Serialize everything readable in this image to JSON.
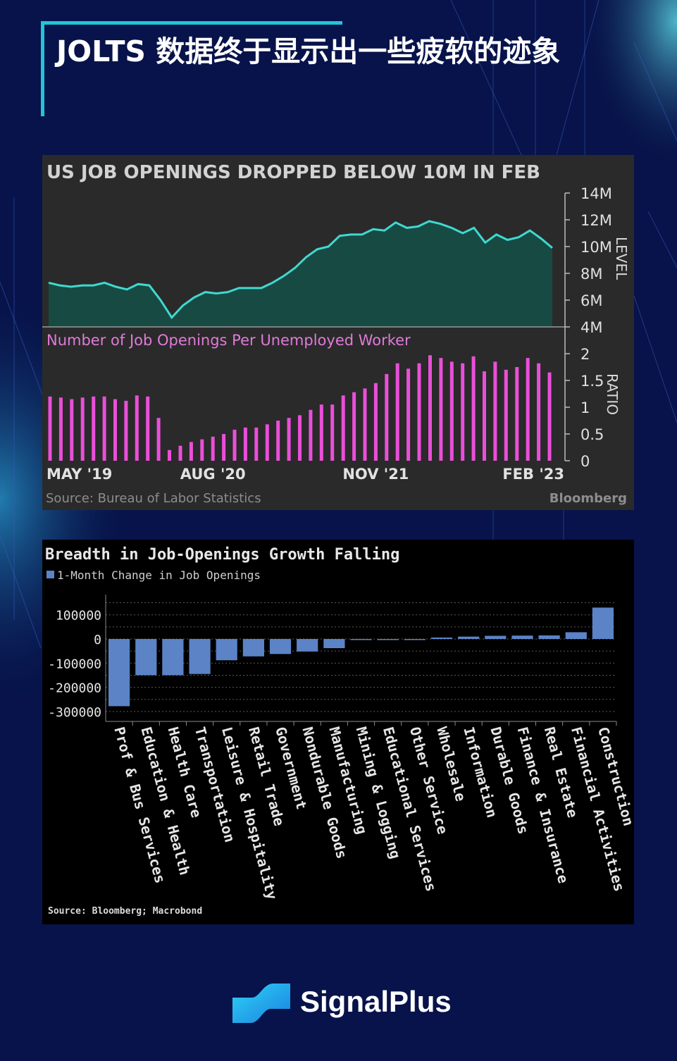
{
  "header": {
    "title": "JOLTS 数据终于显示出一些疲软的迹象"
  },
  "colors": {
    "background": "#07134a",
    "accent": "#22c4d6",
    "level_line": "#3fd9cf",
    "level_fill": "#184a44",
    "ratio_bars": "#ea4fd9",
    "sector_bars": "#5b83c6",
    "panel1_bg": "#2a2a2a",
    "panel2_bg": "#000000"
  },
  "chart_data": [
    {
      "type": "area",
      "title": "US JOB OPENINGS DROPPED BELOW 10M IN FEB",
      "ylabel": "LEVEL",
      "ylim": [
        4,
        14
      ],
      "y_ticks": [
        "14M",
        "12M",
        "10M",
        "8M",
        "6M",
        "4M"
      ],
      "y_tick_values": [
        14,
        12,
        10,
        8,
        6,
        4
      ],
      "x_ticks": [
        "MAY '19",
        "AUG '20",
        "NOV '21",
        "FEB '23"
      ],
      "x_tick_indices": [
        0,
        15,
        30,
        45
      ],
      "series": [
        {
          "values": [
            7.3,
            7.1,
            7.0,
            7.1,
            7.1,
            7.3,
            7.0,
            6.8,
            7.2,
            7.1,
            6.0,
            4.7,
            5.6,
            6.2,
            6.6,
            6.5,
            6.6,
            6.9,
            6.9,
            6.9,
            7.3,
            7.8,
            8.4,
            9.2,
            9.8,
            10.0,
            10.8,
            10.9,
            10.9,
            11.3,
            11.2,
            11.8,
            11.4,
            11.5,
            11.9,
            11.7,
            11.4,
            11.0,
            11.4,
            10.3,
            10.9,
            10.5,
            10.7,
            11.2,
            10.6,
            9.9
          ]
        }
      ]
    },
    {
      "type": "bar",
      "title": "Number of Job Openings Per Unemployed Worker",
      "ylabel": "RATIO",
      "ylim": [
        0,
        2
      ],
      "y_ticks": [
        "2",
        "1.5",
        "1",
        "0.5",
        "0"
      ],
      "y_tick_values": [
        2,
        1.5,
        1,
        0.5,
        0
      ],
      "series": [
        {
          "values": [
            1.2,
            1.18,
            1.15,
            1.18,
            1.2,
            1.2,
            1.15,
            1.12,
            1.22,
            1.2,
            0.8,
            0.2,
            0.28,
            0.35,
            0.4,
            0.45,
            0.5,
            0.58,
            0.62,
            0.62,
            0.68,
            0.75,
            0.8,
            0.85,
            0.95,
            1.05,
            1.05,
            1.22,
            1.28,
            1.35,
            1.45,
            1.62,
            1.82,
            1.72,
            1.82,
            1.97,
            1.92,
            1.85,
            1.82,
            1.95,
            1.67,
            1.85,
            1.7,
            1.75,
            1.92,
            1.82,
            1.65
          ]
        }
      ],
      "source": "Source: Bureau of Labor Statistics",
      "brand": "Bloomberg"
    },
    {
      "type": "bar",
      "title": "Breadth in Job-Openings Growth Falling",
      "legend": "1-Month Change in Job Openings",
      "legend_position": "top-left",
      "ylim": [
        -340000,
        180000
      ],
      "y_ticks": [
        "100000",
        "0",
        "-100000",
        "-200000",
        "-300000"
      ],
      "y_tick_values": [
        100000,
        0,
        -100000,
        -200000,
        -300000
      ],
      "grid": true,
      "categories": [
        "Prof & Bus Services",
        "Education & Health",
        "Health Care",
        "Transportation",
        "Leisure & Hospitality",
        "Retail Trade",
        "Government",
        "Nondurable Goods",
        "Manufacturing",
        "Mining & Logging",
        "Educational Services",
        "Other Service",
        "Wholesale",
        "Information",
        "Durable Goods",
        "Finance & Insurance",
        "Real Estate",
        "Financial Activities",
        "Construction"
      ],
      "values": [
        -278000,
        -150000,
        -150000,
        -145000,
        -88000,
        -72000,
        -62000,
        -52000,
        -38000,
        -3000,
        -2000,
        -1000,
        6000,
        10000,
        13000,
        14000,
        15000,
        28000,
        130000
      ],
      "source": "Source: Bloomberg; Macrobond"
    }
  ],
  "footer": {
    "brand": "SignalPlus"
  }
}
